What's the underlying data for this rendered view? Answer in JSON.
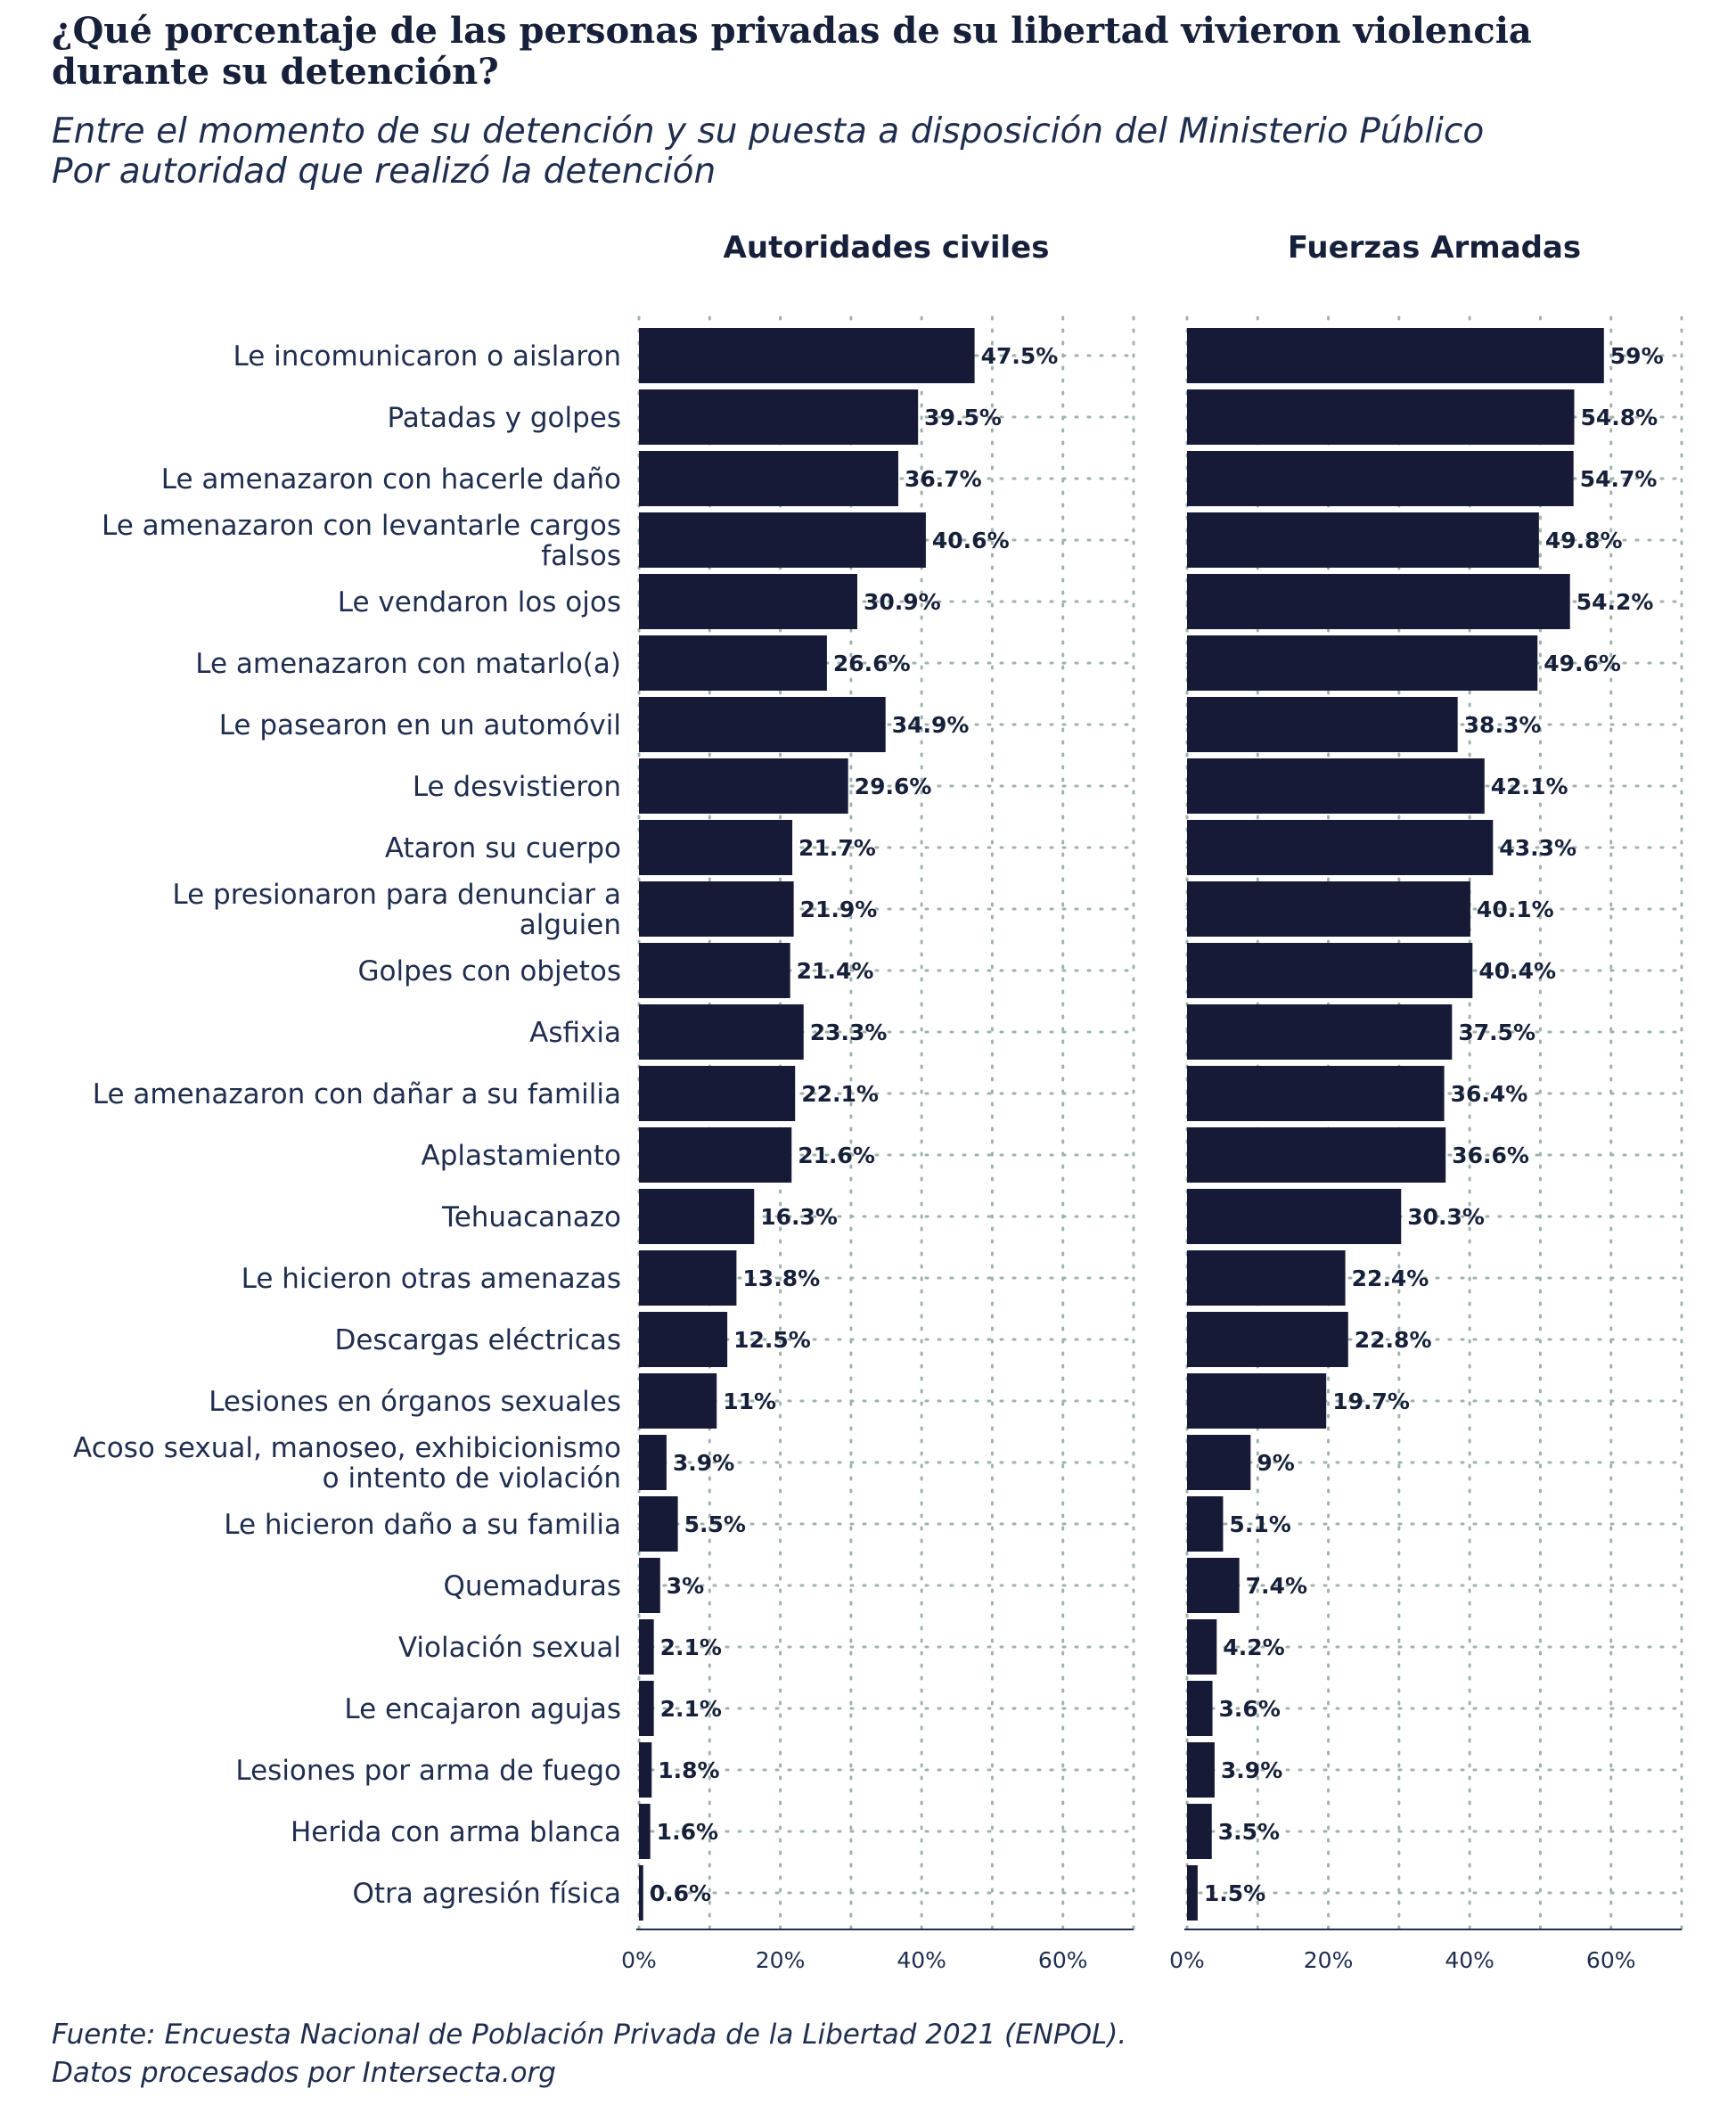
{
  "title_lines": [
    "¿Qué porcentaje de las personas privadas de su libertad vivieron violencia",
    "durante su detención?"
  ],
  "subtitle_lines": [
    "Entre el momento de su detención y su puesta a disposición del Ministerio Público",
    "Por autoridad que realizó la detención"
  ],
  "caption_lines": [
    "Fuente: Encuesta Nacional de Población Privada de la Libertad 2021 (ENPOL).",
    "Datos procesados por Intersecta.org"
  ],
  "colors": {
    "bar": "#161a36",
    "text": "#1f2d4f",
    "grid": "#9fb2ad",
    "axis": "#1f2d4f"
  },
  "chart_data": {
    "type": "bar",
    "orientation": "horizontal",
    "value_unit": "%",
    "xlim": [
      0,
      70
    ],
    "x_ticks": [
      0,
      20,
      40,
      60
    ],
    "x_tick_labels": [
      "0%",
      "20%",
      "40%",
      "60%"
    ],
    "grid": true,
    "categories": [
      [
        "Le incomunicaron o aislaron"
      ],
      [
        "Patadas y golpes"
      ],
      [
        "Le amenazaron con hacerle daño"
      ],
      [
        "Le amenazaron con levantarle cargos",
        "falsos"
      ],
      [
        "Le vendaron los ojos"
      ],
      [
        "Le amenazaron con matarlo(a)"
      ],
      [
        "Le pasearon en un automóvil"
      ],
      [
        "Le desvistieron"
      ],
      [
        "Ataron su cuerpo"
      ],
      [
        "Le presionaron para denunciar a",
        "alguien"
      ],
      [
        "Golpes con objetos"
      ],
      [
        "Asfixia"
      ],
      [
        "Le amenazaron con dañar a su familia"
      ],
      [
        "Aplastamiento"
      ],
      [
        "Tehuacanazo"
      ],
      [
        "Le hicieron otras amenazas"
      ],
      [
        "Descargas eléctricas"
      ],
      [
        "Lesiones en órganos sexuales"
      ],
      [
        "Acoso sexual, manoseo, exhibicionismo",
        "o intento de violación"
      ],
      [
        "Le hicieron daño a su familia"
      ],
      [
        "Quemaduras"
      ],
      [
        "Violación sexual"
      ],
      [
        "Le encajaron agujas"
      ],
      [
        "Lesiones por arma de fuego"
      ],
      [
        "Herida con arma blanca"
      ],
      [
        "Otra agresión física"
      ]
    ],
    "series": [
      {
        "name": "Autoridades civiles",
        "values": [
          47.5,
          39.5,
          36.7,
          40.6,
          30.9,
          26.6,
          34.9,
          29.6,
          21.7,
          21.9,
          21.4,
          23.3,
          22.1,
          21.6,
          16.3,
          13.8,
          12.5,
          11,
          3.9,
          5.5,
          3,
          2.1,
          2.1,
          1.8,
          1.6,
          0.6
        ],
        "labels": [
          "47.5%",
          "39.5%",
          "36.7%",
          "40.6%",
          "30.9%",
          "26.6%",
          "34.9%",
          "29.6%",
          "21.7%",
          "21.9%",
          "21.4%",
          "23.3%",
          "22.1%",
          "21.6%",
          "16.3%",
          "13.8%",
          "12.5%",
          "11%",
          "3.9%",
          "5.5%",
          "3%",
          "2.1%",
          "2.1%",
          "1.8%",
          "1.6%",
          "0.6%"
        ]
      },
      {
        "name": "Fuerzas Armadas",
        "values": [
          59,
          54.8,
          54.7,
          49.8,
          54.2,
          49.6,
          38.3,
          42.1,
          43.3,
          40.1,
          40.4,
          37.5,
          36.4,
          36.6,
          30.3,
          22.4,
          22.8,
          19.7,
          9,
          5.1,
          7.4,
          4.2,
          3.6,
          3.9,
          3.5,
          1.5
        ],
        "labels": [
          "59%",
          "54.8%",
          "54.7%",
          "49.8%",
          "54.2%",
          "49.6%",
          "38.3%",
          "42.1%",
          "43.3%",
          "40.1%",
          "40.4%",
          "37.5%",
          "36.4%",
          "36.6%",
          "30.3%",
          "22.4%",
          "22.8%",
          "19.7%",
          "9%",
          "5.1%",
          "7.4%",
          "4.2%",
          "3.6%",
          "3.9%",
          "3.5%",
          "1.5%"
        ]
      }
    ]
  }
}
